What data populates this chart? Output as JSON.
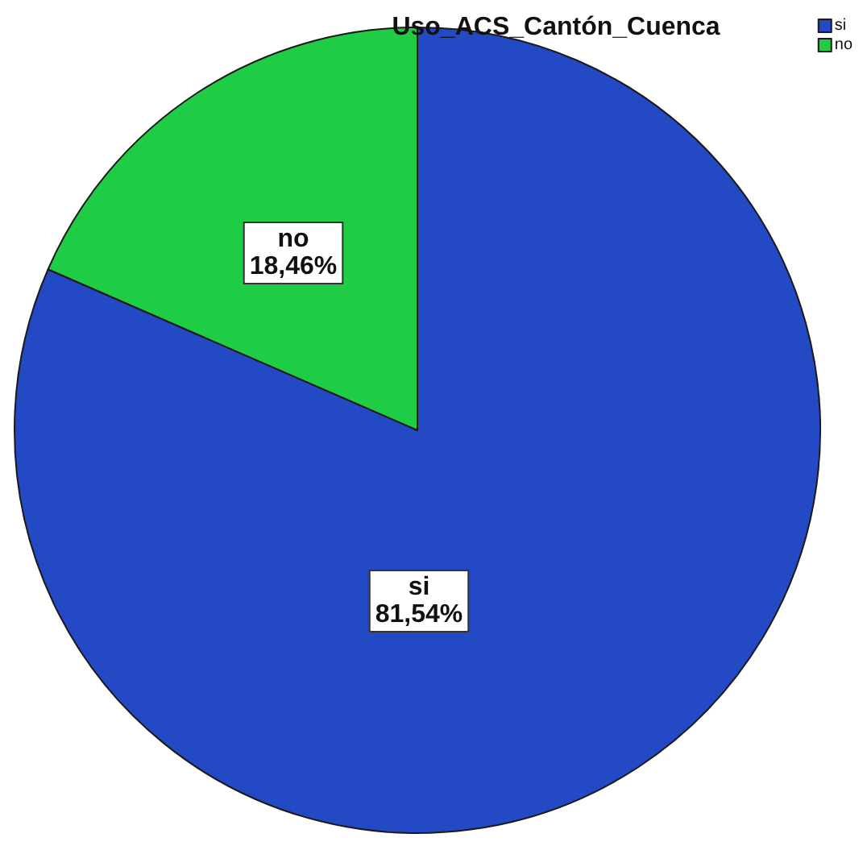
{
  "chart_data": {
    "type": "pie",
    "title": "Uso_ACS_Cantón_Cuenca",
    "categories": [
      "si",
      "no"
    ],
    "values": [
      81.54,
      18.46
    ],
    "colors": [
      "#2349c4",
      "#1ecd45"
    ],
    "value_labels": [
      "81,54%",
      "18,46%"
    ],
    "legend": "top right"
  }
}
